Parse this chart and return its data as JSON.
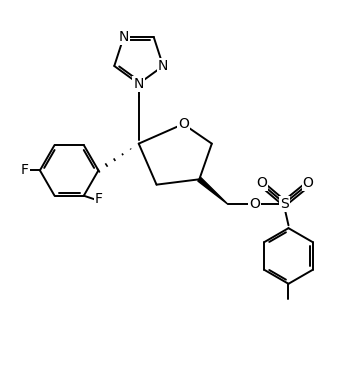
{
  "background_color": "#ffffff",
  "line_color": "#000000",
  "lw": 1.4,
  "fs": 10,
  "figsize": [
    3.63,
    3.8
  ],
  "dpi": 100,
  "xlim": [
    0,
    10
  ],
  "ylim": [
    0,
    10.5
  ]
}
